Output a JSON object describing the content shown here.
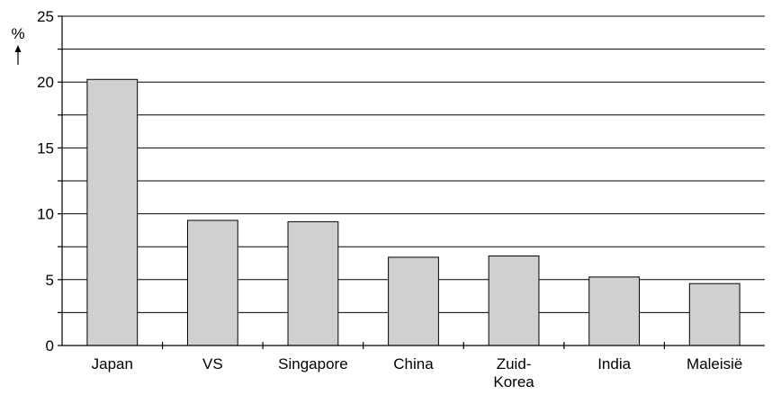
{
  "chart_data": {
    "type": "bar",
    "title": "",
    "xlabel": "",
    "ylabel": "%",
    "categories": [
      "Japan",
      "VS",
      "Singapore",
      "China",
      "Zuid-Korea",
      "India",
      "Maleisië"
    ],
    "category_lines": [
      [
        "Japan"
      ],
      [
        "VS"
      ],
      [
        "Singapore"
      ],
      [
        "China"
      ],
      [
        "Zuid-",
        "Korea"
      ],
      [
        "India"
      ],
      [
        "Maleisië"
      ]
    ],
    "values": [
      20.2,
      9.5,
      9.4,
      6.7,
      6.8,
      5.2,
      4.7
    ],
    "ylim": [
      0,
      25
    ],
    "yticks": [
      "0",
      "5",
      "10",
      "15",
      "20",
      "25"
    ],
    "grid": true,
    "colors": {
      "bar_fill": "#d0d0d0",
      "bar_stroke": "#000000",
      "grid": "#000000"
    }
  }
}
